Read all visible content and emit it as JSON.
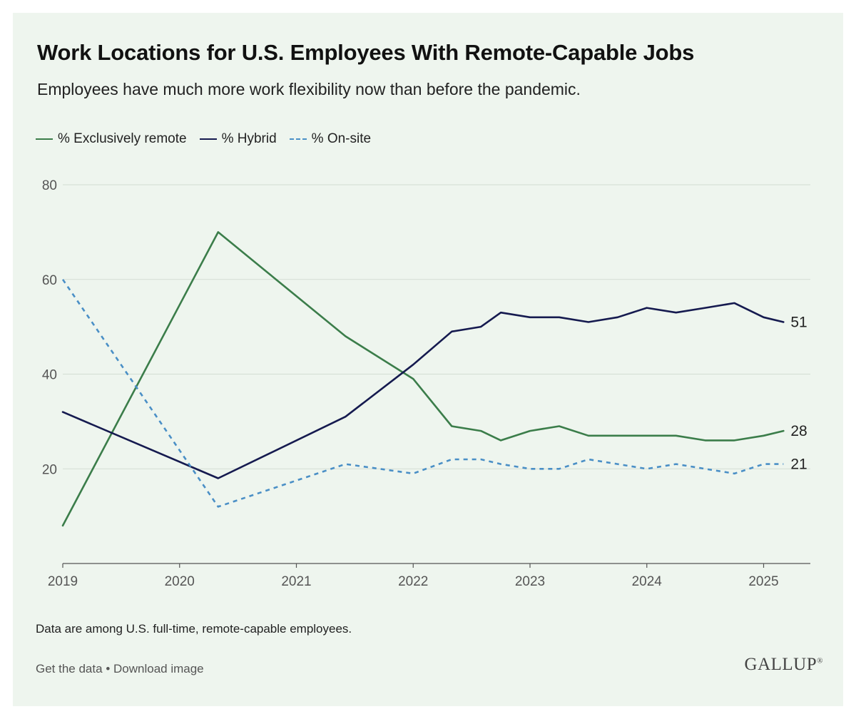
{
  "header": {
    "title": "Work Locations for U.S. Employees With Remote-Capable Jobs",
    "subtitle": "Employees have much more work flexibility now than before the pandemic."
  },
  "footer": {
    "note": "Data are among U.S. full-time, remote-capable employees.",
    "get_data": "Get the data",
    "separator": "•",
    "download": "Download image",
    "logo": "GALLUP",
    "logo_mark": "®"
  },
  "colors": {
    "remote": "#3b7d4a",
    "hybrid": "#151a4f",
    "onsite": "#4a8fc6",
    "grid": "#d3ddd3",
    "axis": "#555555",
    "tick_text": "#555555"
  },
  "chart_data": {
    "type": "line",
    "title": "Work Locations for U.S. Employees With Remote-Capable Jobs",
    "xlabel": "",
    "ylabel": "",
    "xlim": [
      2019,
      2025.4
    ],
    "ylim": [
      0,
      80
    ],
    "yticks": [
      20,
      40,
      60,
      80
    ],
    "xticks": [
      2019,
      2020,
      2021,
      2022,
      2023,
      2024,
      2025
    ],
    "grid": true,
    "legend": "top-left",
    "series": [
      {
        "name": "% Exclusively remote",
        "key": "remote",
        "style": "solid",
        "end_label": "28",
        "points": [
          [
            2019.0,
            8
          ],
          [
            2020.33,
            70
          ],
          [
            2021.42,
            48
          ],
          [
            2022.0,
            39
          ],
          [
            2022.33,
            29
          ],
          [
            2022.58,
            28
          ],
          [
            2022.75,
            26
          ],
          [
            2023.0,
            28
          ],
          [
            2023.25,
            29
          ],
          [
            2023.5,
            27
          ],
          [
            2023.75,
            27
          ],
          [
            2024.0,
            27
          ],
          [
            2024.25,
            27
          ],
          [
            2024.5,
            26
          ],
          [
            2024.75,
            26
          ],
          [
            2025.0,
            27
          ],
          [
            2025.17,
            28
          ]
        ]
      },
      {
        "name": "% Hybrid",
        "key": "hybrid",
        "style": "solid",
        "end_label": "51",
        "points": [
          [
            2019.0,
            32
          ],
          [
            2020.33,
            18
          ],
          [
            2021.42,
            31
          ],
          [
            2022.0,
            42
          ],
          [
            2022.33,
            49
          ],
          [
            2022.58,
            50
          ],
          [
            2022.75,
            53
          ],
          [
            2023.0,
            52
          ],
          [
            2023.25,
            52
          ],
          [
            2023.5,
            51
          ],
          [
            2023.75,
            52
          ],
          [
            2024.0,
            54
          ],
          [
            2024.25,
            53
          ],
          [
            2024.5,
            54
          ],
          [
            2024.75,
            55
          ],
          [
            2025.0,
            52
          ],
          [
            2025.17,
            51
          ]
        ]
      },
      {
        "name": "% On-site",
        "key": "onsite",
        "style": "dashed",
        "end_label": "21",
        "points": [
          [
            2019.0,
            60
          ],
          [
            2020.33,
            12
          ],
          [
            2021.42,
            21
          ],
          [
            2022.0,
            19
          ],
          [
            2022.33,
            22
          ],
          [
            2022.58,
            22
          ],
          [
            2022.75,
            21
          ],
          [
            2023.0,
            20
          ],
          [
            2023.25,
            20
          ],
          [
            2023.5,
            22
          ],
          [
            2023.75,
            21
          ],
          [
            2024.0,
            20
          ],
          [
            2024.25,
            21
          ],
          [
            2024.5,
            20
          ],
          [
            2024.75,
            19
          ],
          [
            2025.0,
            21
          ],
          [
            2025.17,
            21
          ]
        ]
      }
    ]
  }
}
